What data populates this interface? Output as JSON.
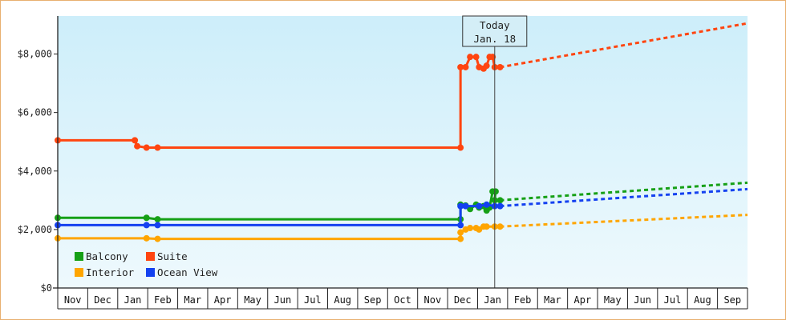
{
  "chart_data": {
    "type": "line",
    "y_ticks": [
      "$0",
      "$2,000",
      "$4,000",
      "$6,000",
      "$8,000"
    ],
    "y_tick_values": [
      0,
      2000,
      4000,
      6000,
      8000
    ],
    "ylim": [
      0,
      9300
    ],
    "x_labels": [
      "Nov",
      "Dec",
      "Jan",
      "Feb",
      "Mar",
      "Apr",
      "May",
      "Jun",
      "Jul",
      "Aug",
      "Sep",
      "Oct",
      "Nov",
      "Dec",
      "Jan",
      "Feb",
      "Mar",
      "Apr",
      "May",
      "Jun",
      "Jul",
      "Aug",
      "Sep"
    ],
    "x_range_months": [
      0,
      23
    ],
    "today": {
      "line1": "Today",
      "line2": "Jan. 18",
      "x_month": 14.57
    },
    "grid": false,
    "legend_position": "bottom-left",
    "series": [
      {
        "name": "Balcony",
        "color": "#16a016",
        "points": [
          [
            0.0,
            2400
          ],
          [
            2.96,
            2400
          ],
          [
            3.33,
            2350
          ],
          [
            13.43,
            2350
          ],
          [
            13.43,
            2850
          ],
          [
            13.6,
            2820
          ],
          [
            13.75,
            2700
          ],
          [
            13.95,
            2850
          ],
          [
            14.05,
            2750
          ],
          [
            14.2,
            2800
          ],
          [
            14.3,
            2650
          ],
          [
            14.4,
            2750
          ],
          [
            14.5,
            3300
          ],
          [
            14.6,
            3300
          ],
          [
            14.57,
            3000
          ],
          [
            14.75,
            3000
          ]
        ],
        "forecast": [
          [
            14.75,
            3000
          ],
          [
            23.3,
            3600
          ]
        ]
      },
      {
        "name": "Suite",
        "color": "#ff4510",
        "points": [
          [
            0.0,
            5050
          ],
          [
            2.57,
            5050
          ],
          [
            2.65,
            4850
          ],
          [
            2.96,
            4800
          ],
          [
            3.33,
            4800
          ],
          [
            13.43,
            4800
          ],
          [
            13.43,
            7550
          ],
          [
            13.6,
            7550
          ],
          [
            13.75,
            7900
          ],
          [
            13.95,
            7900
          ],
          [
            14.05,
            7550
          ],
          [
            14.2,
            7500
          ],
          [
            14.3,
            7600
          ],
          [
            14.4,
            7900
          ],
          [
            14.5,
            7900
          ],
          [
            14.57,
            7550
          ],
          [
            14.75,
            7550
          ]
        ],
        "forecast": [
          [
            14.75,
            7550
          ],
          [
            23.3,
            9050
          ]
        ]
      },
      {
        "name": "Interior",
        "color": "#ffa500",
        "points": [
          [
            0.0,
            1700
          ],
          [
            2.96,
            1700
          ],
          [
            3.33,
            1680
          ],
          [
            13.43,
            1680
          ],
          [
            13.43,
            1900
          ],
          [
            13.6,
            2000
          ],
          [
            13.75,
            2050
          ],
          [
            13.95,
            2050
          ],
          [
            14.05,
            2000
          ],
          [
            14.2,
            2100
          ],
          [
            14.3,
            2100
          ],
          [
            14.57,
            2100
          ],
          [
            14.75,
            2100
          ]
        ],
        "forecast": [
          [
            14.75,
            2100
          ],
          [
            23.3,
            2500
          ]
        ]
      },
      {
        "name": "Ocean View",
        "color": "#1441f0",
        "points": [
          [
            0.0,
            2150
          ],
          [
            2.96,
            2150
          ],
          [
            3.33,
            2150
          ],
          [
            13.43,
            2150
          ],
          [
            13.43,
            2800
          ],
          [
            13.6,
            2800
          ],
          [
            14.05,
            2800
          ],
          [
            14.3,
            2850
          ],
          [
            14.57,
            2800
          ],
          [
            14.75,
            2800
          ]
        ],
        "forecast": [
          [
            14.75,
            2800
          ],
          [
            23.3,
            3380
          ]
        ]
      }
    ]
  }
}
